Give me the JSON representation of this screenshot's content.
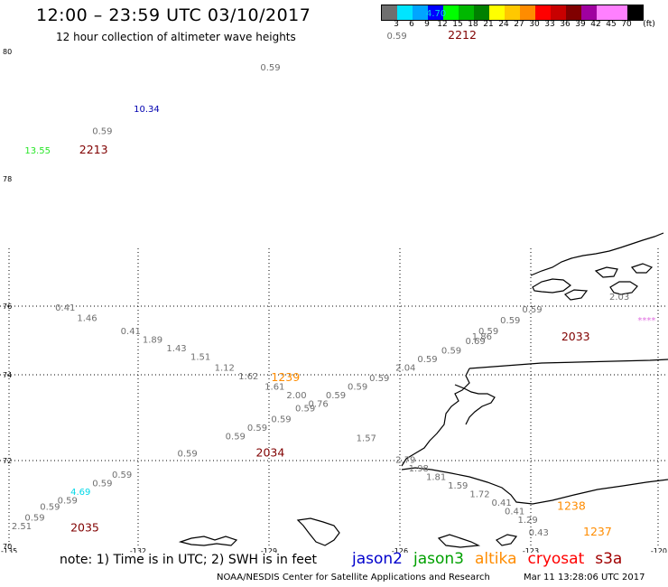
{
  "header": {
    "title": "12:00 – 23:59 UTC 03/10/2017",
    "subtitle": "12 hour collection of altimeter wave heights"
  },
  "colorbar": {
    "unit_label": "(ft)",
    "colors": [
      "#6f6f6f",
      "#00e5ff",
      "#00a5ff",
      "#0000ff",
      "#00ff00",
      "#00b800",
      "#008000",
      "#ffff00",
      "#ffc800",
      "#ff8c00",
      "#ff0000",
      "#c80000",
      "#800000",
      "#a000a0",
      "#ff80ff",
      "#ff80ff",
      "#000000"
    ],
    "ticks": [
      "3",
      "6",
      "9",
      "12",
      "15",
      "18",
      "21",
      "24",
      "27",
      "30",
      "33",
      "36",
      "39",
      "42",
      "45",
      "70"
    ]
  },
  "axes": {
    "lat_labels": [
      {
        "lat": 80,
        "text": "80"
      },
      {
        "lat": 78,
        "text": "78"
      },
      {
        "lat": 76,
        "text": "76"
      },
      {
        "lat": 74,
        "text": "74"
      },
      {
        "lat": 72,
        "text": "72"
      },
      {
        "lat": 70,
        "text": "70"
      }
    ],
    "lon_labels": [
      {
        "lon": -135,
        "text": "-135"
      },
      {
        "lon": -132,
        "text": "-132"
      },
      {
        "lon": -129,
        "text": "-129"
      },
      {
        "lon": -126,
        "text": "-126"
      },
      {
        "lon": -123,
        "text": "-123"
      },
      {
        "lon": -120,
        "text": "-120"
      }
    ]
  },
  "map_labels": {
    "swh": [
      {
        "text": "4.70",
        "color": "#00d8e8",
        "lon": -125.4,
        "lat": 80.55
      },
      {
        "text": "0.59",
        "color": "#6f6f6f",
        "lon": -126.3,
        "lat": 80.2
      },
      {
        "text": "0.59",
        "color": "#6f6f6f",
        "lon": -129.2,
        "lat": 79.7
      },
      {
        "text": "10.34",
        "color": "#0000b0",
        "lon": -132.1,
        "lat": 79.05
      },
      {
        "text": "0.59",
        "color": "#6f6f6f",
        "lon": -133.05,
        "lat": 78.7
      },
      {
        "text": "13.55",
        "color": "#28e628",
        "lon": -134.6,
        "lat": 78.4
      },
      {
        "text": "2.03",
        "color": "#6f6f6f",
        "lon": -121.2,
        "lat": 75.75
      },
      {
        "text": "****",
        "color": "#e070e0",
        "lon": -120.55,
        "lat": 75.2
      },
      {
        "text": "0.41",
        "color": "#6f6f6f",
        "lon": -133.9,
        "lat": 75.5
      },
      {
        "text": "1.46",
        "color": "#6f6f6f",
        "lon": -133.4,
        "lat": 75.25
      },
      {
        "text": "0.41",
        "color": "#6f6f6f",
        "lon": -132.4,
        "lat": 74.95
      },
      {
        "text": "1.89",
        "color": "#6f6f6f",
        "lon": -131.9,
        "lat": 74.75
      },
      {
        "text": "1.43",
        "color": "#6f6f6f",
        "lon": -131.35,
        "lat": 74.55
      },
      {
        "text": "1.51",
        "color": "#6f6f6f",
        "lon": -130.8,
        "lat": 74.35
      },
      {
        "text": "1.12",
        "color": "#6f6f6f",
        "lon": -130.25,
        "lat": 74.1
      },
      {
        "text": "1.62",
        "color": "#6f6f6f",
        "lon": -129.7,
        "lat": 73.9
      },
      {
        "text": "1.61",
        "color": "#6f6f6f",
        "lon": -129.1,
        "lat": 73.65
      },
      {
        "text": "2.00",
        "color": "#6f6f6f",
        "lon": -128.6,
        "lat": 73.45
      },
      {
        "text": "0.76",
        "color": "#6f6f6f",
        "lon": -128.1,
        "lat": 73.25
      },
      {
        "text": "0.59",
        "color": "#6f6f6f",
        "lon": -128.4,
        "lat": 73.15
      },
      {
        "text": "0.59",
        "color": "#6f6f6f",
        "lon": -127.7,
        "lat": 73.45
      },
      {
        "text": "0.59",
        "color": "#6f6f6f",
        "lon": -127.2,
        "lat": 73.65
      },
      {
        "text": "0.59",
        "color": "#6f6f6f",
        "lon": -126.7,
        "lat": 73.85
      },
      {
        "text": "2.04",
        "color": "#6f6f6f",
        "lon": -126.1,
        "lat": 74.1
      },
      {
        "text": "0.59",
        "color": "#6f6f6f",
        "lon": -125.6,
        "lat": 74.3
      },
      {
        "text": "0.59",
        "color": "#6f6f6f",
        "lon": -125.05,
        "lat": 74.5
      },
      {
        "text": "0.69",
        "color": "#6f6f6f",
        "lon": -124.5,
        "lat": 74.72
      },
      {
        "text": "1.86",
        "color": "#6f6f6f",
        "lon": -124.35,
        "lat": 74.82
      },
      {
        "text": "0.59",
        "color": "#6f6f6f",
        "lon": -124.2,
        "lat": 74.95
      },
      {
        "text": "0.59",
        "color": "#6f6f6f",
        "lon": -123.7,
        "lat": 75.2
      },
      {
        "text": "0.59",
        "color": "#6f6f6f",
        "lon": -123.2,
        "lat": 75.45
      },
      {
        "text": "0.59",
        "color": "#6f6f6f",
        "lon": -128.95,
        "lat": 72.9
      },
      {
        "text": "0.59",
        "color": "#6f6f6f",
        "lon": -129.5,
        "lat": 72.7
      },
      {
        "text": "0.59",
        "color": "#6f6f6f",
        "lon": -130.0,
        "lat": 72.5
      },
      {
        "text": "1.57",
        "color": "#6f6f6f",
        "lon": -127.0,
        "lat": 72.45
      },
      {
        "text": "0.59",
        "color": "#6f6f6f",
        "lon": -131.1,
        "lat": 72.1
      },
      {
        "text": "2.79",
        "color": "#6f6f6f",
        "lon": -126.1,
        "lat": 71.95
      },
      {
        "text": "1.98",
        "color": "#6f6f6f",
        "lon": -125.8,
        "lat": 71.75
      },
      {
        "text": "1.81",
        "color": "#6f6f6f",
        "lon": -125.4,
        "lat": 71.55
      },
      {
        "text": "1.59",
        "color": "#6f6f6f",
        "lon": -124.9,
        "lat": 71.35
      },
      {
        "text": "1.72",
        "color": "#6f6f6f",
        "lon": -124.4,
        "lat": 71.15
      },
      {
        "text": "0.41",
        "color": "#6f6f6f",
        "lon": -123.9,
        "lat": 70.95
      },
      {
        "text": "0.41",
        "color": "#6f6f6f",
        "lon": -123.6,
        "lat": 70.75
      },
      {
        "text": "1.29",
        "color": "#6f6f6f",
        "lon": -123.3,
        "lat": 70.55
      },
      {
        "text": "0.43",
        "color": "#6f6f6f",
        "lon": -123.05,
        "lat": 70.25
      },
      {
        "text": "0.59",
        "color": "#6f6f6f",
        "lon": -132.6,
        "lat": 71.6
      },
      {
        "text": "0.59",
        "color": "#6f6f6f",
        "lon": -133.05,
        "lat": 71.4
      },
      {
        "text": "4.69",
        "color": "#00d8e8",
        "lon": -133.55,
        "lat": 71.2
      },
      {
        "text": "0.59",
        "color": "#6f6f6f",
        "lon": -133.85,
        "lat": 71.0
      },
      {
        "text": "0.59",
        "color": "#6f6f6f",
        "lon": -134.25,
        "lat": 70.85
      },
      {
        "text": "0.59",
        "color": "#6f6f6f",
        "lon": -134.6,
        "lat": 70.6
      },
      {
        "text": "2.51",
        "color": "#6f6f6f",
        "lon": -134.9,
        "lat": 70.4
      }
    ],
    "pass_times": [
      {
        "text": "2212",
        "color": "#800000",
        "lon": -124.9,
        "lat": 80.2
      },
      {
        "text": "2213",
        "color": "#800000",
        "lon": -133.35,
        "lat": 78.4
      },
      {
        "text": "2033",
        "color": "#800000",
        "lon": -122.3,
        "lat": 74.8
      },
      {
        "text": "1239",
        "color": "#ff8c00",
        "lon": -128.95,
        "lat": 73.85
      },
      {
        "text": "2034",
        "color": "#800000",
        "lon": -129.3,
        "lat": 72.1
      },
      {
        "text": "1238",
        "color": "#ff8c00",
        "lon": -122.4,
        "lat": 70.85
      },
      {
        "text": "1237",
        "color": "#ff8c00",
        "lon": -121.8,
        "lat": 70.25
      },
      {
        "text": "2035",
        "color": "#800000",
        "lon": -133.55,
        "lat": 70.35
      }
    ]
  },
  "legend": {
    "note": "note: 1) Time is in UTC; 2) SWH is in feet",
    "missions": [
      {
        "name": "jason2",
        "color": "#0000cc"
      },
      {
        "name": "jason3",
        "color": "#00a000"
      },
      {
        "name": "altika",
        "color": "#ff8c00"
      },
      {
        "name": "cryosat",
        "color": "#ff0000"
      },
      {
        "name": "s3a",
        "color": "#a00000"
      }
    ]
  },
  "footer": {
    "org": "NOAA/NESDIS Center for Satellite Applications and Research",
    "timestamp": "Mar 11 13:28:06 UTC 2017"
  }
}
